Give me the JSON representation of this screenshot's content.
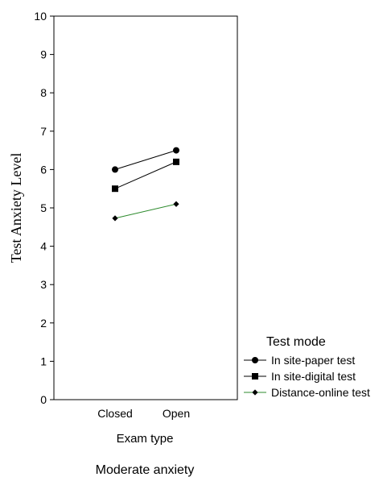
{
  "chart_data": {
    "type": "line",
    "categories": [
      "Closed",
      "Open"
    ],
    "series": [
      {
        "name": "In site-paper test",
        "values": [
          6.0,
          6.5
        ],
        "marker": "circle",
        "color": "#000000"
      },
      {
        "name": "In site-digital test",
        "values": [
          5.5,
          6.2
        ],
        "marker": "square",
        "color": "#000000"
      },
      {
        "name": "Distance-online test",
        "values": [
          4.73,
          5.1
        ],
        "marker": "diamond",
        "color": "#2e8b2e"
      }
    ],
    "xlabel": "Exam type",
    "ylabel": "Test Anxiety Level",
    "ylim": [
      0,
      10
    ],
    "yticks": [
      "0",
      "1",
      "2",
      "3",
      "4",
      "5",
      "6",
      "7",
      "8",
      "9",
      "10"
    ],
    "legend_title": "Test mode",
    "legend_position": "bottom-right, outside",
    "grid": false,
    "caption": "Moderate anxiety"
  }
}
